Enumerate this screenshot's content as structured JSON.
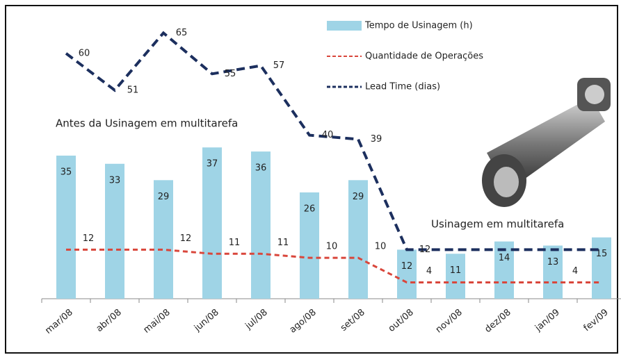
{
  "chart_data": {
    "type": "bar",
    "categories": [
      "mar/08",
      "abr/08",
      "mai/08",
      "jun/08",
      "jul/08",
      "ago/08",
      "set/08",
      "out/08",
      "nov/08",
      "dez/08",
      "jan/09",
      "fev/09"
    ],
    "ylim": [
      0,
      70
    ],
    "legend": "top-right",
    "annotations": [
      "Antes da Usinagem em multitarefa",
      "Usinagem em multitarefa"
    ],
    "series": [
      {
        "name": "Tempo de Usinagem (h)",
        "type": "bar",
        "color": "#9fd4e6",
        "values": [
          35,
          33,
          29,
          37,
          36,
          26,
          29,
          12,
          11,
          14,
          13,
          15
        ]
      },
      {
        "name": "Quantidade de Operações",
        "type": "line",
        "color": "#d9463b",
        "values": [
          12,
          12,
          12,
          11,
          11,
          10,
          10,
          4,
          4,
          4,
          4,
          4
        ],
        "value_labels": [
          "12",
          null,
          "12",
          "11",
          "11",
          "10",
          "10",
          "4",
          null,
          null,
          "4",
          null
        ]
      },
      {
        "name": "Lead Time (dias)",
        "type": "line",
        "color": "#1c2f5e",
        "values": [
          60,
          51,
          65,
          55,
          57,
          40,
          39,
          12,
          12,
          12,
          12,
          12
        ],
        "value_labels": [
          "60",
          "51",
          "65",
          "55",
          "57",
          "40",
          "39",
          "12",
          null,
          null,
          null,
          null
        ]
      }
    ]
  }
}
